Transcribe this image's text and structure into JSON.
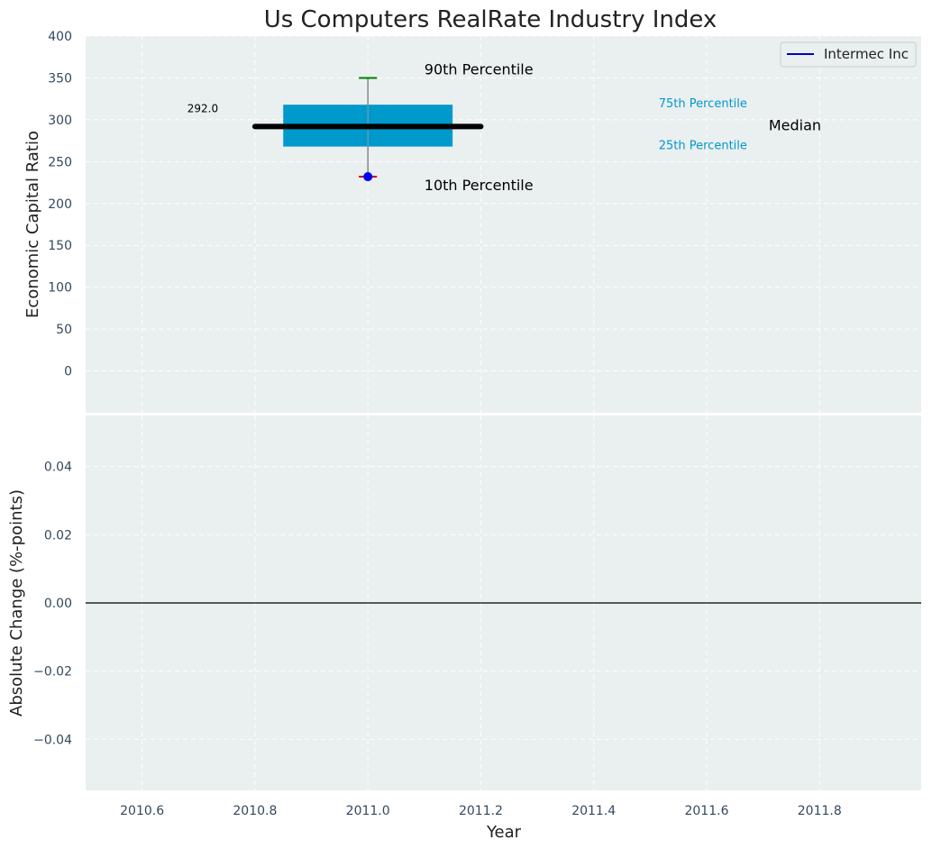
{
  "chart_data": [
    {
      "type": "box",
      "title": "Us Computers RealRate Industry Index",
      "xlabel": "",
      "ylabel": "Economic Capital Ratio",
      "xlim": [
        2010.5,
        2011.98
      ],
      "ylim": [
        -50,
        400
      ],
      "yticks": [
        0,
        50,
        100,
        150,
        200,
        250,
        300,
        350,
        400
      ],
      "grid": true,
      "box": {
        "x": 2011.0,
        "p10": 232,
        "p25": 268,
        "median": 292,
        "p75": 318,
        "p90": 350,
        "median_line_x": [
          2010.8,
          2011.2
        ],
        "box_x": [
          2010.85,
          2011.15
        ]
      },
      "company_point": {
        "x": 2011.0,
        "y": 232
      },
      "legend": {
        "position": "top-right",
        "entries": [
          "Intermec Inc"
        ]
      },
      "annotations": {
        "median_value": "292.0",
        "p90": "90th Percentile",
        "p10": "10th Percentile",
        "p75": "75th Percentile",
        "p25": "25th Percentile",
        "median": "Median"
      },
      "colors": {
        "box": "#0099cc",
        "median": "#000000",
        "p90_cap": "#008000",
        "p10_cap": "#cc0000",
        "point": "#0000ff",
        "legend_line": "#0000cc",
        "legend_text_p": "#0099cc"
      }
    },
    {
      "type": "line",
      "xlabel": "Year",
      "ylabel": "Absolute Change (%-points)",
      "xlim": [
        2010.5,
        2011.98
      ],
      "ylim": [
        -0.055,
        0.055
      ],
      "yticks": [
        -0.04,
        -0.02,
        0.0,
        0.02,
        0.04
      ],
      "ytick_labels": [
        "−0.04",
        "−0.02",
        "0.00",
        "0.02",
        "0.04"
      ],
      "xticks": [
        2010.6,
        2010.8,
        2011.0,
        2011.2,
        2011.4,
        2011.6,
        2011.8
      ],
      "xtick_labels": [
        "2010.6",
        "2010.8",
        "2011.0",
        "2011.2",
        "2011.4",
        "2011.6",
        "2011.8"
      ],
      "zero_line": 0,
      "grid": true,
      "series": []
    }
  ]
}
